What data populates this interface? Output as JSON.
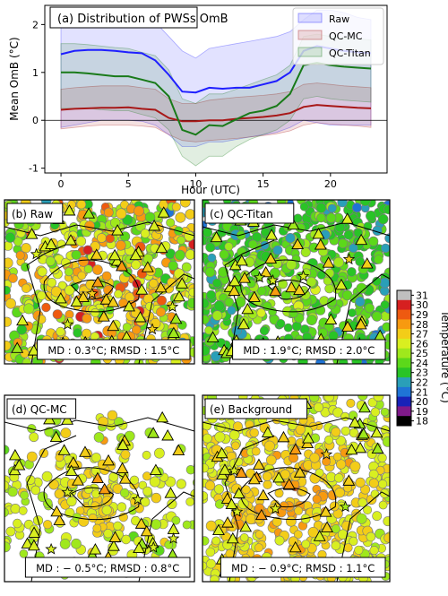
{
  "chart_data": [
    {
      "panel": "(a)",
      "type": "area",
      "title": "(a) Distribution of PWSs OmB",
      "xlabel": "Hour (UTC)",
      "ylabel": "Mean OmB (°C)",
      "xlim": [
        -1.2,
        24.2
      ],
      "ylim": [
        -1.1,
        2.4
      ],
      "xticks": [
        0,
        5,
        10,
        15,
        20
      ],
      "yticks": [
        -1,
        0,
        1,
        2
      ],
      "legend_position": "top-right",
      "zero_line": true,
      "x": [
        0,
        1,
        2,
        3,
        4,
        5,
        6,
        7,
        8,
        9,
        10,
        11,
        12,
        13,
        14,
        15,
        16,
        17,
        18,
        19,
        20,
        21,
        22,
        23
      ],
      "series": [
        {
          "name": "Raw",
          "color": "#1f1fff",
          "values": [
            1.38,
            1.45,
            1.47,
            1.47,
            1.45,
            1.42,
            1.4,
            1.25,
            0.95,
            0.6,
            0.58,
            0.68,
            0.66,
            0.68,
            0.68,
            0.75,
            0.82,
            1.0,
            1.45,
            1.55,
            1.5,
            1.45,
            1.42,
            1.4
          ],
          "lower": [
            -0.15,
            -0.1,
            -0.05,
            0.0,
            0.0,
            0.0,
            -0.02,
            -0.1,
            -0.3,
            -0.55,
            -0.55,
            -0.45,
            -0.45,
            -0.4,
            -0.35,
            -0.3,
            -0.25,
            -0.15,
            0.0,
            -0.05,
            -0.1,
            -0.1,
            -0.1,
            -0.1
          ],
          "upper": [
            2.05,
            2.15,
            2.2,
            2.2,
            2.2,
            2.2,
            2.15,
            2.05,
            1.75,
            1.45,
            1.3,
            1.5,
            1.55,
            1.6,
            1.65,
            1.7,
            1.75,
            1.85,
            2.1,
            2.3,
            2.3,
            2.25,
            2.15,
            2.1
          ]
        },
        {
          "name": "QC-MC",
          "color": "#a81818",
          "values": [
            0.22,
            0.24,
            0.25,
            0.26,
            0.26,
            0.27,
            0.24,
            0.22,
            0.05,
            -0.02,
            -0.02,
            0.0,
            0.0,
            0.03,
            0.05,
            0.07,
            0.1,
            0.15,
            0.28,
            0.32,
            0.3,
            0.28,
            0.26,
            0.25
          ],
          "lower": [
            -0.18,
            -0.15,
            -0.12,
            -0.1,
            -0.1,
            -0.1,
            -0.12,
            -0.15,
            -0.3,
            -0.42,
            -0.45,
            -0.42,
            -0.4,
            -0.38,
            -0.35,
            -0.32,
            -0.28,
            -0.22,
            -0.1,
            -0.05,
            -0.08,
            -0.1,
            -0.12,
            -0.15
          ],
          "upper": [
            0.65,
            0.68,
            0.7,
            0.72,
            0.72,
            0.72,
            0.68,
            0.65,
            0.45,
            0.35,
            0.35,
            0.42,
            0.45,
            0.48,
            0.5,
            0.52,
            0.55,
            0.6,
            0.75,
            0.78,
            0.75,
            0.72,
            0.7,
            0.68
          ]
        },
        {
          "name": "QC-Titan",
          "color": "#197a19",
          "values": [
            1.0,
            1.0,
            0.98,
            0.95,
            0.92,
            0.92,
            0.85,
            0.78,
            0.5,
            -0.2,
            -0.3,
            -0.1,
            -0.12,
            0.02,
            0.15,
            0.2,
            0.3,
            0.55,
            1.15,
            1.2,
            1.15,
            1.12,
            1.1,
            1.08
          ],
          "lower": [
            0.25,
            0.25,
            0.25,
            0.22,
            0.2,
            0.2,
            0.12,
            0.05,
            -0.2,
            -0.75,
            -0.95,
            -0.75,
            -0.75,
            -0.55,
            -0.4,
            -0.3,
            -0.2,
            0.0,
            0.45,
            0.5,
            0.45,
            0.42,
            0.4,
            0.38
          ],
          "upper": [
            1.6,
            1.6,
            1.58,
            1.55,
            1.52,
            1.5,
            1.42,
            1.35,
            1.05,
            0.45,
            0.35,
            0.55,
            0.55,
            0.65,
            0.75,
            0.85,
            0.95,
            1.15,
            1.75,
            1.8,
            1.75,
            1.72,
            1.7,
            1.68
          ]
        }
      ]
    },
    {
      "panel": "(b)",
      "type": "scatter",
      "title": "(b) Raw",
      "stats": "MD : 0.3°C; RMSD : 1.5°C",
      "palette_center": 26.3,
      "palette_spread": 2.6
    },
    {
      "panel": "(c)",
      "type": "scatter",
      "title": "(c) QC-Titan",
      "stats": "MD : 1.9°C; RMSD : 2.0°C",
      "palette_center": 23.7,
      "palette_spread": 1.2
    },
    {
      "panel": "(d)",
      "type": "scatter",
      "title": "(d) QC-MC",
      "stats": "MD : − 0.5°C; RMSD : 0.8°C",
      "palette_center": 25.8,
      "palette_spread": 1.0
    },
    {
      "panel": "(e)",
      "type": "scatter",
      "title": "(e) Background",
      "stats": "MD : − 0.9°C; RMSD : 1.1°C",
      "palette_center": 26.6,
      "palette_spread": 0.9
    }
  ],
  "colorbar": {
    "label": "Temperature (°C)",
    "ticks": [
      31,
      30,
      29,
      28,
      27,
      26,
      25,
      24,
      23,
      22,
      21,
      20,
      19,
      18
    ],
    "colors": [
      "#bfbfbf",
      "#d62020",
      "#ee5a10",
      "#f79a10",
      "#f3cd18",
      "#d9ef20",
      "#9fe81c",
      "#5cd81a",
      "#29c426",
      "#2a9fb8",
      "#1f74d6",
      "#1822b8",
      "#7f1a8a",
      "#000000"
    ]
  }
}
